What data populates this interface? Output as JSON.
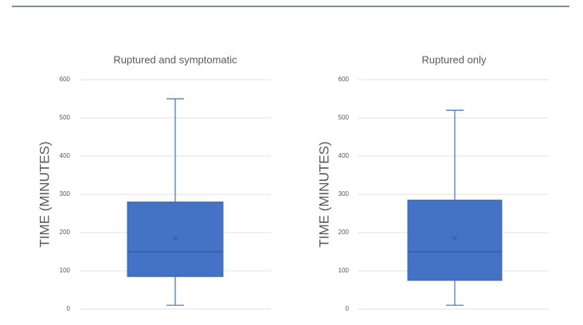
{
  "chart_data": [
    {
      "type": "box",
      "title": "Ruptured  and symptomatic",
      "y_label": "TIME (MINUTES)",
      "ylim": [
        0,
        600
      ],
      "yticks": [
        0,
        100,
        200,
        300,
        400,
        500,
        600
      ],
      "grid": true,
      "color": "#4472c4",
      "box": {
        "min": 10,
        "q1": 85,
        "median": 150,
        "q3": 280,
        "max": 550,
        "mean": 185
      }
    },
    {
      "type": "box",
      "title": "Ruptured only",
      "y_label": "TIME (MINUTES)",
      "ylim": [
        0,
        600
      ],
      "yticks": [
        0,
        100,
        200,
        300,
        400,
        500,
        600
      ],
      "grid": true,
      "color": "#4472c4",
      "box": {
        "min": 10,
        "q1": 75,
        "median": 150,
        "q3": 285,
        "max": 520,
        "mean": 185
      }
    }
  ]
}
